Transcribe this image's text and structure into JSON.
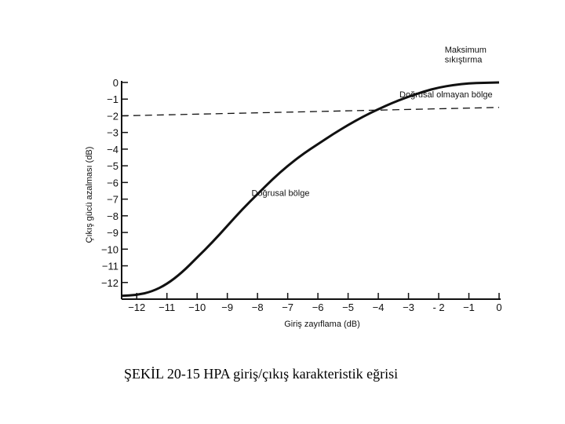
{
  "caption": "ŞEKİL 20-15 HPA giriş/çıkış karakteristik eğrisi",
  "chart_data": {
    "type": "line",
    "title": "",
    "xlabel": "Giriş zayıflama (dB)",
    "ylabel": "Çıkış gücü azalması (dB)",
    "xlim": [
      -12.5,
      0
    ],
    "ylim": [
      -13,
      0
    ],
    "x_ticks": [
      -12,
      -11,
      -10,
      -9,
      -8,
      -7,
      -6,
      -5,
      -4,
      -3,
      -2,
      -1,
      0
    ],
    "x_tick_labels": [
      "−12",
      "−11",
      "−10",
      "−9",
      "−8",
      "−7",
      "−6",
      "−5",
      "−4",
      "−3",
      "- 2",
      "−1",
      "0"
    ],
    "y_ticks": [
      0,
      -1,
      -2,
      -3,
      -4,
      -5,
      -6,
      -7,
      -8,
      -9,
      -10,
      -11,
      -12
    ],
    "y_tick_labels": [
      "0",
      "−1",
      "−2",
      "−3",
      "−4",
      "−5",
      "−6",
      "−7",
      "−8",
      "−9",
      "−10",
      "−11",
      "−12"
    ],
    "grid": false,
    "series": [
      {
        "style": "solid",
        "x": [
          -12.5,
          -12.0,
          -11.5,
          -11.0,
          -10.5,
          -10.0,
          -9.5,
          -9.0,
          -8.5,
          -8.0,
          -7.5,
          -7.0,
          -6.5,
          -6.0,
          -5.5,
          -5.0,
          -4.5,
          -4.0,
          -3.5,
          -3.0,
          -2.5,
          -2.0,
          -1.5,
          -1.0,
          -0.5,
          0.0
        ],
        "y": [
          -12.8,
          -12.75,
          -12.55,
          -12.1,
          -11.4,
          -10.5,
          -9.6,
          -8.6,
          -7.6,
          -6.7,
          -5.8,
          -5.0,
          -4.3,
          -3.7,
          -3.1,
          -2.55,
          -2.05,
          -1.6,
          -1.2,
          -0.85,
          -0.55,
          -0.3,
          -0.15,
          -0.05,
          -0.02,
          0.0
        ]
      },
      {
        "style": "dashed",
        "x": [
          -12.5,
          0.0
        ],
        "y": [
          -2.0,
          -1.5
        ]
      }
    ],
    "annotations": [
      {
        "text": "Maksimum",
        "x": -1.8,
        "y": 1.8
      },
      {
        "text": "sıkıştırma",
        "x": -1.8,
        "y": 1.2
      },
      {
        "text": "Doğrusal olmayan bölge",
        "x": -3.3,
        "y": -0.9
      },
      {
        "text": "Doğrusal bölge",
        "x": -8.2,
        "y": -6.8
      }
    ]
  }
}
